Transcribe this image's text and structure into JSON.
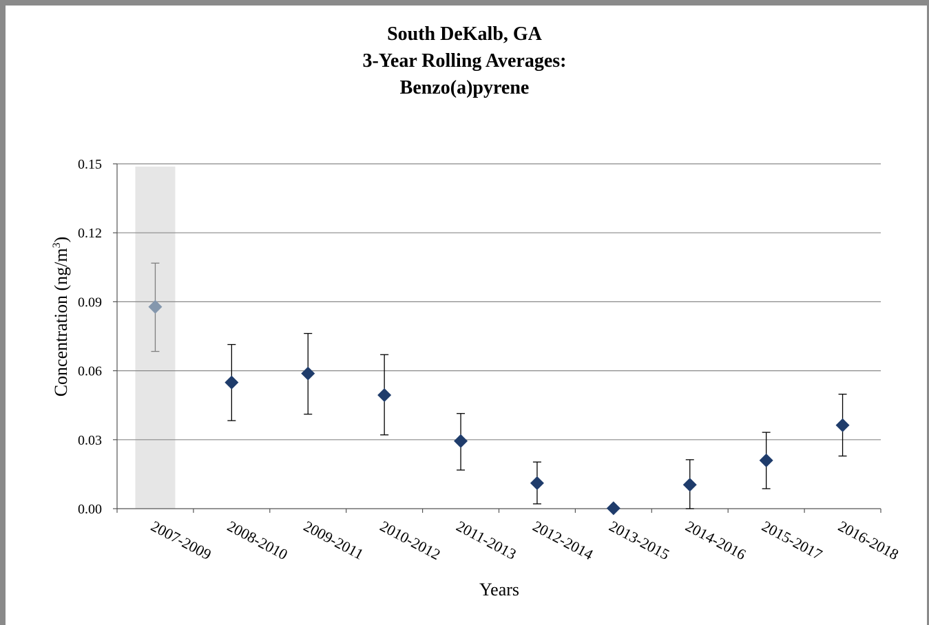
{
  "chart_data": {
    "type": "scatter",
    "title": [
      "South DeKalb, GA",
      "3-Year Rolling Averages:",
      "Benzo(a)pyrene"
    ],
    "xlabel": "Years",
    "ylabel": "Concentration (ng/m",
    "ylabel_sup": "3",
    "ylabel_end": ")",
    "ylim": [
      0,
      0.15
    ],
    "yticks": [
      "0.00",
      "0.03",
      "0.06",
      "0.09",
      "0.12",
      "0.15"
    ],
    "grid": true,
    "categories": [
      "2007-2009",
      "2008-2010",
      "2009-2011",
      "2010-2012",
      "2011-2013",
      "2012-2014",
      "2013-2015",
      "2014-2016",
      "2015-2017",
      "2016-2018"
    ],
    "values": [
      0.0878,
      0.0549,
      0.0588,
      0.0494,
      0.0294,
      0.0111,
      0.0002,
      0.0104,
      0.021,
      0.0363
    ],
    "error_low": [
      0.0684,
      0.0383,
      0.0411,
      0.0321,
      0.0168,
      0.0021,
      0.0,
      0.0,
      0.0087,
      0.0229
    ],
    "error_high": [
      0.1068,
      0.0714,
      0.0762,
      0.067,
      0.0414,
      0.0203,
      0.0,
      0.0213,
      0.0332,
      0.0498
    ],
    "highlighted_category": "2007-2009",
    "colors": {
      "marker": "#1f3c6b",
      "highlight_marker": "#8497ad",
      "highlight_band": "#e6e6e6",
      "gridline": "#888888",
      "error_bar": "#000000",
      "highlight_error_bar": "#7f7f7f"
    }
  }
}
